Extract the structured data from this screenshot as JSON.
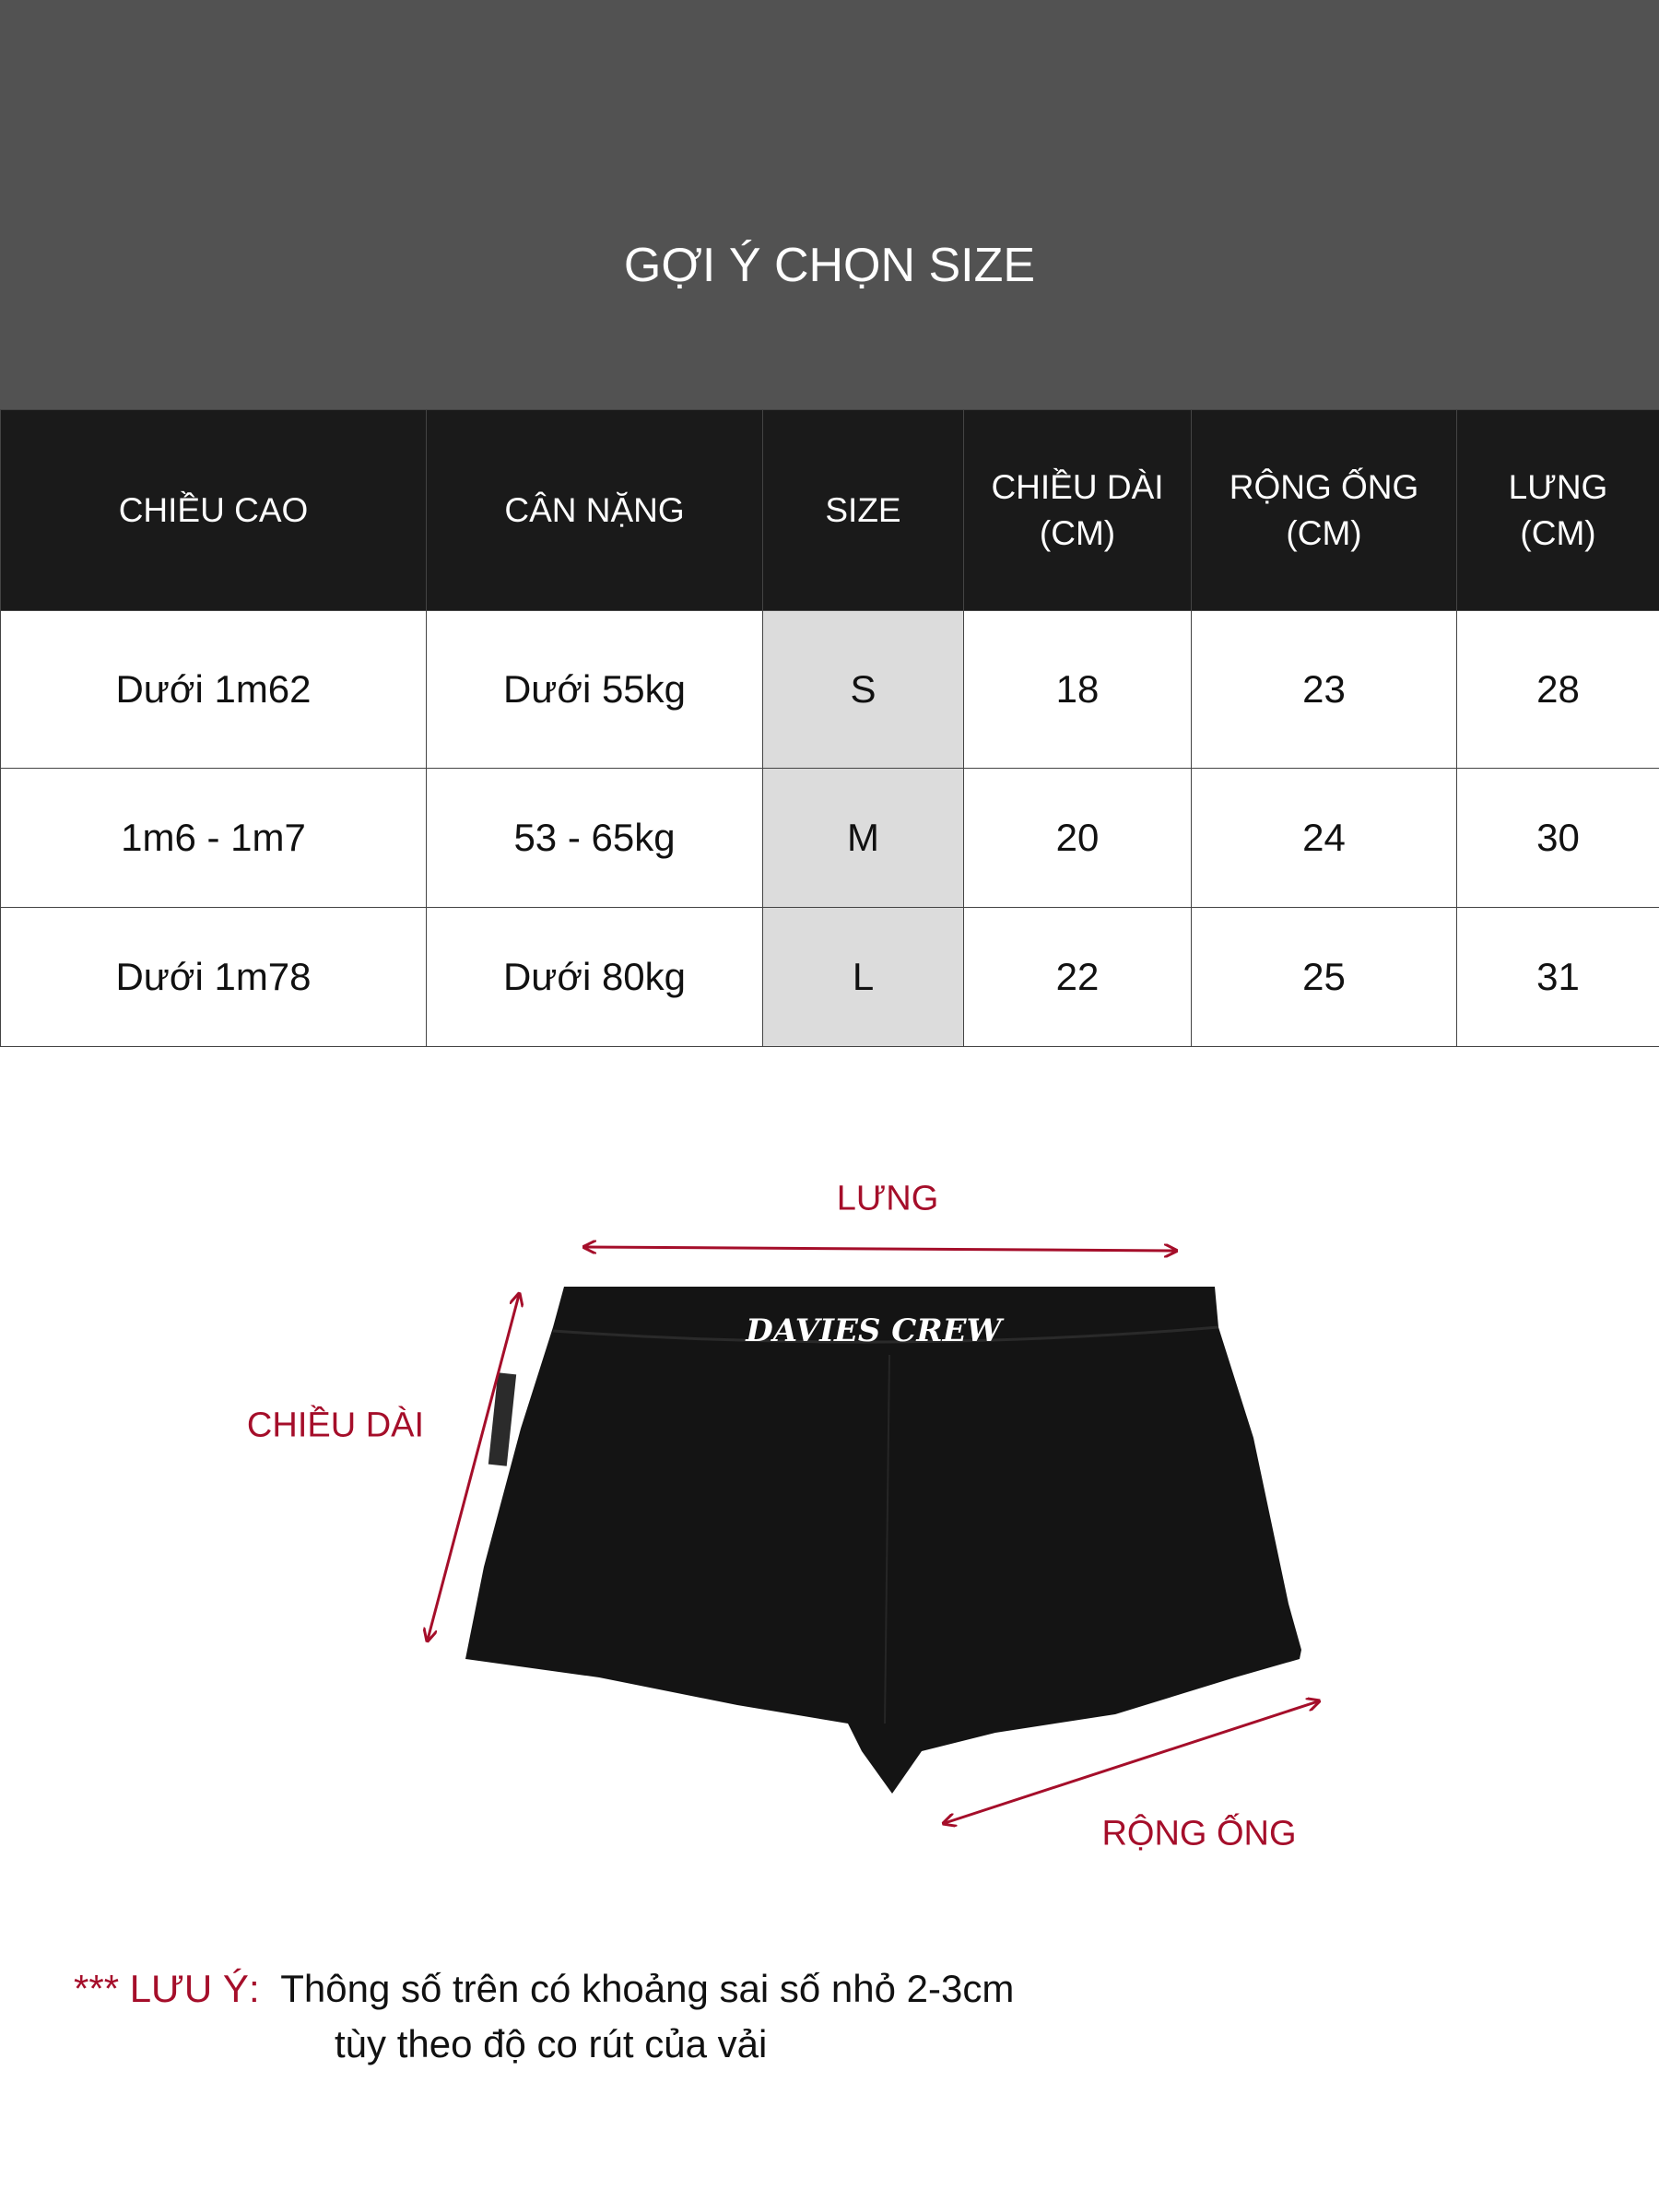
{
  "header": {
    "title": "GỢI Ý CHỌN SIZE"
  },
  "table": {
    "columns": [
      "CHIỀU CAO",
      "CÂN NẶNG",
      "SIZE",
      "CHIỀU DÀI (CM)",
      "RỘNG ỐNG (CM)",
      "LƯNG (CM)"
    ],
    "column_lines": [
      [
        "CHIỀU CAO"
      ],
      [
        "CÂN NẶNG"
      ],
      [
        "SIZE"
      ],
      [
        "CHIỀU DÀI",
        "(CM)"
      ],
      [
        "RỘNG ỐNG",
        "(CM)"
      ],
      [
        "LƯNG",
        "(CM)"
      ]
    ],
    "rows": [
      [
        "Dưới 1m62",
        "Dưới 55kg",
        "S",
        "18",
        "23",
        "28"
      ],
      [
        "1m6 - 1m7",
        "53 - 65kg",
        "M",
        "20",
        "24",
        "30"
      ],
      [
        "Dưới 1m78",
        "Dưới 80kg",
        "L",
        "22",
        "25",
        "31"
      ]
    ],
    "size_column_highlight": "#dcdcdc"
  },
  "diagram": {
    "labels": {
      "waist": "LƯNG",
      "length": "CHIỀU DÀI",
      "leg_opening": "RỘNG ỐNG"
    },
    "logo_text": "DAVIES CREW",
    "accent_color": "#a50e2a"
  },
  "note": {
    "prefix": "*** LƯU Ý:",
    "line1": "Thông số trên có khoảng sai số nhỏ 2-3cm",
    "line2": "tùy theo độ co rút của vải"
  }
}
